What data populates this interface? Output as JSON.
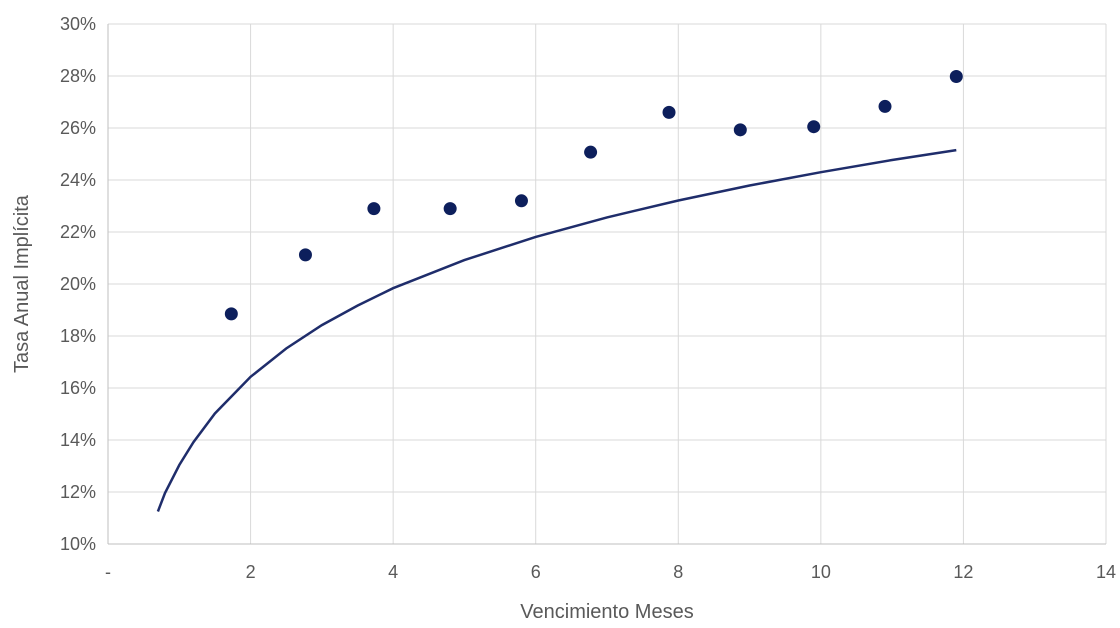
{
  "chart_data": {
    "type": "scatter",
    "title": "",
    "xlabel": "Vencimiento Meses",
    "ylabel": "Tasa Anual Implícita",
    "xlim": [
      0,
      14
    ],
    "ylim": [
      0.1,
      0.3
    ],
    "grid": true,
    "x_ticks": [
      {
        "value": 0,
        "label": "-"
      },
      {
        "value": 2,
        "label": "2"
      },
      {
        "value": 4,
        "label": "4"
      },
      {
        "value": 6,
        "label": "6"
      },
      {
        "value": 8,
        "label": "8"
      },
      {
        "value": 10,
        "label": "10"
      },
      {
        "value": 12,
        "label": "12"
      },
      {
        "value": 14,
        "label": "14"
      }
    ],
    "y_ticks": [
      {
        "value": 0.1,
        "label": "10%"
      },
      {
        "value": 0.12,
        "label": "12%"
      },
      {
        "value": 0.14,
        "label": "14%"
      },
      {
        "value": 0.16,
        "label": "16%"
      },
      {
        "value": 0.18,
        "label": "18%"
      },
      {
        "value": 0.2,
        "label": "20%"
      },
      {
        "value": 0.22,
        "label": "22%"
      },
      {
        "value": 0.24,
        "label": "24%"
      },
      {
        "value": 0.26,
        "label": "26%"
      },
      {
        "value": 0.28,
        "label": "28%"
      },
      {
        "value": 0.3,
        "label": "30%"
      }
    ],
    "series": [
      {
        "type": "scatter",
        "color": "#0d1f5c",
        "x": [
          1.73,
          2.77,
          3.73,
          4.8,
          5.8,
          6.77,
          7.87,
          8.87,
          9.9,
          10.9,
          11.9
        ],
        "y": [
          0.1885,
          0.2112,
          0.229,
          0.229,
          0.232,
          0.2507,
          0.266,
          0.2593,
          0.2605,
          0.2683,
          0.2798
        ]
      },
      {
        "type": "line",
        "style": "logarithmic-trendline",
        "color": "#1f2d6b",
        "x": [
          0.7,
          0.8,
          1.0,
          1.2,
          1.5,
          2.0,
          2.5,
          3.0,
          3.5,
          4.0,
          5.0,
          6.0,
          7.0,
          8.0,
          9.0,
          10.0,
          11.0,
          11.9
        ],
        "y": [
          0.1125,
          0.1196,
          0.1304,
          0.1392,
          0.1502,
          0.1643,
          0.1752,
          0.1842,
          0.1917,
          0.1984,
          0.2092,
          0.2181,
          0.2256,
          0.2321,
          0.2379,
          0.243,
          0.2477,
          0.2515
        ]
      }
    ]
  }
}
